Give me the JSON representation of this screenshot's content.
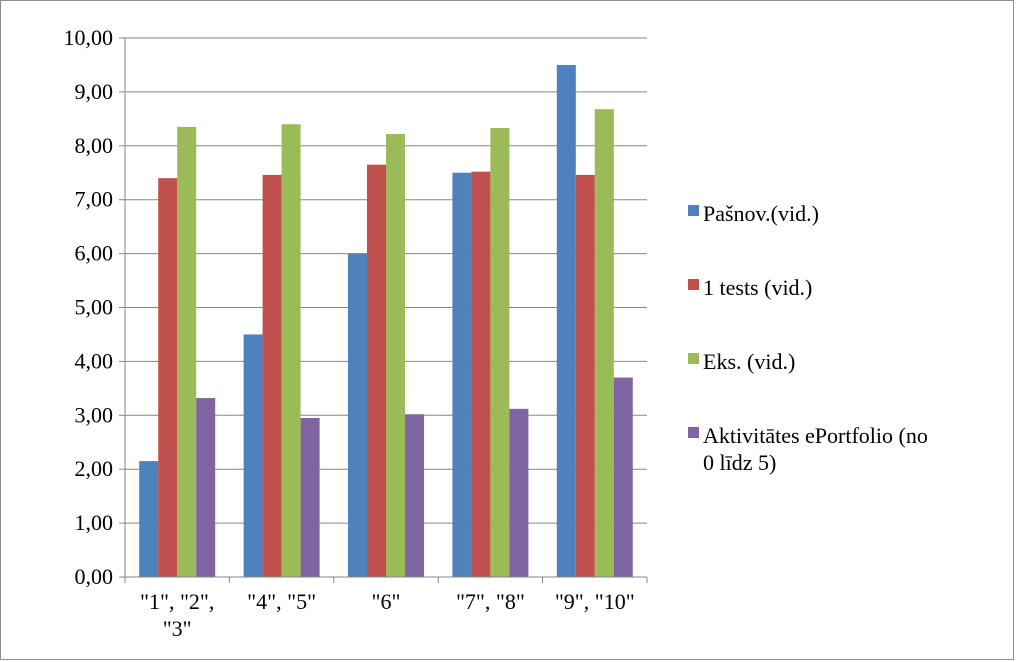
{
  "chart_data": {
    "type": "bar",
    "categories": [
      [
        "\"1\", \"2\",",
        "\"3\""
      ],
      [
        "\"4\", \"5\""
      ],
      [
        "\"6\""
      ],
      [
        "\"7\", \"8\""
      ],
      [
        "\"9\", \"10\""
      ]
    ],
    "series": [
      {
        "name": "Pašnov.(vid.)",
        "color": "#4f81bd",
        "values": [
          2.15,
          4.5,
          6.0,
          7.5,
          9.5
        ]
      },
      {
        "name": "1 tests (vid.)",
        "color": "#c0504d",
        "values": [
          7.4,
          7.46,
          7.65,
          7.52,
          7.46
        ]
      },
      {
        "name": "Eks. (vid.)",
        "color": "#9bbb59",
        "values": [
          8.35,
          8.4,
          8.22,
          8.33,
          8.68
        ]
      },
      {
        "name": "Aktivitātes ePortfolio (no 0 līdz 5)",
        "color": "#8064a2",
        "values": [
          3.32,
          2.95,
          3.02,
          3.12,
          3.7
        ]
      }
    ],
    "yticks": [
      "0,00",
      "1,00",
      "2,00",
      "3,00",
      "4,00",
      "5,00",
      "6,00",
      "7,00",
      "8,00",
      "9,00",
      "10,00"
    ],
    "ylim": [
      0,
      10
    ],
    "grid": true,
    "legend_position": "right"
  }
}
